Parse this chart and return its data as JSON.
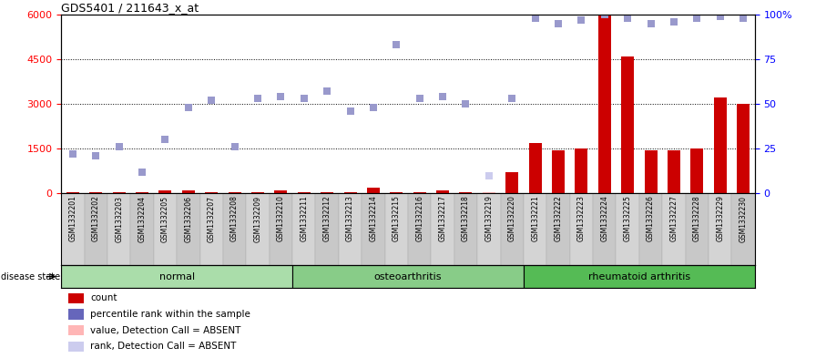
{
  "title": "GDS5401 / 211643_x_at",
  "samples": [
    "GSM1332201",
    "GSM1332202",
    "GSM1332203",
    "GSM1332204",
    "GSM1332205",
    "GSM1332206",
    "GSM1332207",
    "GSM1332208",
    "GSM1332209",
    "GSM1332210",
    "GSM1332211",
    "GSM1332212",
    "GSM1332213",
    "GSM1332214",
    "GSM1332215",
    "GSM1332216",
    "GSM1332217",
    "GSM1332218",
    "GSM1332219",
    "GSM1332220",
    "GSM1332221",
    "GSM1332222",
    "GSM1332223",
    "GSM1332224",
    "GSM1332225",
    "GSM1332226",
    "GSM1332227",
    "GSM1332228",
    "GSM1332229",
    "GSM1332230"
  ],
  "count_values": [
    50,
    50,
    50,
    50,
    100,
    100,
    50,
    50,
    50,
    100,
    50,
    50,
    50,
    200,
    50,
    50,
    100,
    50,
    50,
    700,
    1700,
    1450,
    1500,
    6000,
    4600,
    1450,
    1450,
    1500,
    3200,
    3000
  ],
  "count_absent": [
    false,
    false,
    false,
    false,
    false,
    false,
    false,
    false,
    false,
    false,
    false,
    false,
    false,
    false,
    false,
    false,
    false,
    false,
    true,
    false,
    false,
    false,
    false,
    false,
    false,
    false,
    false,
    false,
    false,
    false
  ],
  "rank_pct": [
    22,
    21,
    26,
    12,
    30,
    48,
    52,
    26,
    53,
    54,
    53,
    57,
    46,
    48,
    83,
    53,
    54,
    50,
    10,
    53,
    98,
    95,
    97,
    100,
    98,
    95,
    96,
    98,
    99,
    98
  ],
  "rank_absent": [
    false,
    false,
    false,
    false,
    false,
    false,
    false,
    false,
    false,
    false,
    false,
    false,
    false,
    false,
    false,
    false,
    false,
    false,
    true,
    false,
    false,
    false,
    false,
    false,
    false,
    false,
    false,
    false,
    false,
    false
  ],
  "groups": [
    {
      "label": "normal",
      "start": 0,
      "end": 9
    },
    {
      "label": "osteoarthritis",
      "start": 10,
      "end": 19
    },
    {
      "label": "rheumatoid arthritis",
      "start": 20,
      "end": 29
    }
  ],
  "ylim_left": [
    0,
    6000
  ],
  "ylim_right": [
    0,
    100
  ],
  "yticks_left": [
    0,
    1500,
    3000,
    4500,
    6000
  ],
  "yticks_right": [
    0,
    25,
    50,
    75,
    100
  ],
  "bar_color": "#CC0000",
  "bar_absent_color": "#FFB6B6",
  "rank_color": "#9999CC",
  "rank_absent_color": "#CCCCEE",
  "group_colors": [
    "#AADDAA",
    "#88CC88",
    "#55BB55"
  ],
  "legend_items": [
    {
      "label": "count",
      "color": "#CC0000"
    },
    {
      "label": "percentile rank within the sample",
      "color": "#6666BB"
    },
    {
      "label": "value, Detection Call = ABSENT",
      "color": "#FFB6B6"
    },
    {
      "label": "rank, Detection Call = ABSENT",
      "color": "#CCCCEE"
    }
  ]
}
